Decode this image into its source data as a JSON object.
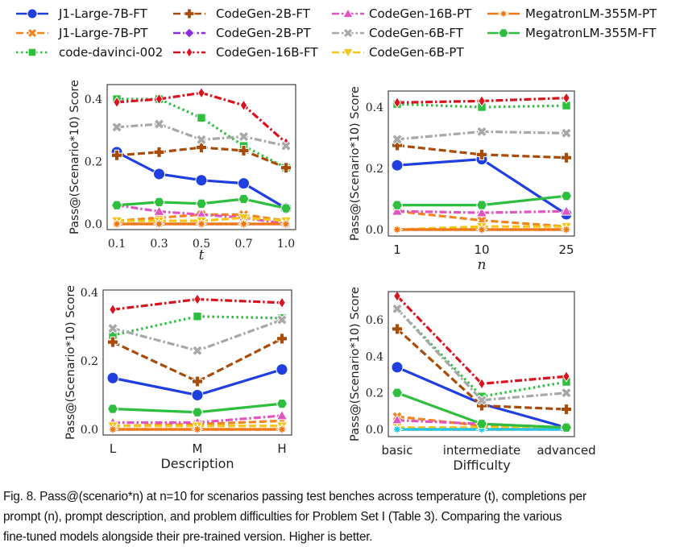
{
  "legend": [
    {
      "name": "J1-Large-7B-FT",
      "color": "#1f3fe0",
      "marker": "circle",
      "linestyle": "solid"
    },
    {
      "name": "J1-Large-7B-PT",
      "color": "#f5841f",
      "marker": "x",
      "linestyle": "dashed"
    },
    {
      "name": "code-davinci-002",
      "color": "#2fbf3f",
      "marker": "square",
      "linestyle": "dotted"
    },
    {
      "name": "CodeGen-2B-FT",
      "color": "#a84c0a",
      "marker": "plus",
      "linestyle": "dashed"
    },
    {
      "name": "CodeGen-2B-PT",
      "color": "#8a2be2",
      "marker": "diamond",
      "linestyle": "dashdot"
    },
    {
      "name": "CodeGen-16B-FT",
      "color": "#d8121e",
      "marker": "thin-diamond",
      "linestyle": "dashdot"
    },
    {
      "name": "CodeGen-16B-PT",
      "color": "#e055c0",
      "marker": "triangle-up",
      "linestyle": "dashdot"
    },
    {
      "name": "CodeGen-6B-FT",
      "color": "#a8a8a8",
      "marker": "x-filled",
      "linestyle": "dashdot"
    },
    {
      "name": "CodeGen-6B-PT",
      "color": "#f5c518",
      "marker": "triangle-down",
      "linestyle": "dashed"
    },
    {
      "name": "MegatronLM-355M-PT",
      "color": "#f07810",
      "marker": "star",
      "linestyle": "solid"
    },
    {
      "name": "MegatronLM-355M-FT",
      "color": "#2fbf3f",
      "marker": "hexagon",
      "linestyle": "solid"
    }
  ],
  "extra_series_color": "#1fc8e8",
  "chart_data": [
    {
      "type": "line",
      "xlabel": "t",
      "ylabel": "Pass@(Scenario*10) Score",
      "categories": [
        "0.1",
        "0.3",
        "0.5",
        "0.7",
        "1.0"
      ],
      "ylim": [
        0,
        0.44
      ],
      "yticks": [
        "0.0",
        "0.2",
        "0.4"
      ],
      "grid": false,
      "series": [
        {
          "name": "J1-Large-7B-FT",
          "values": [
            0.23,
            0.16,
            0.14,
            0.13,
            0.05
          ]
        },
        {
          "name": "J1-Large-7B-PT",
          "values": [
            0.01,
            0.02,
            0.03,
            0.03,
            0.01
          ]
        },
        {
          "name": "code-davinci-002",
          "values": [
            0.4,
            0.4,
            0.34,
            0.25,
            0.18
          ]
        },
        {
          "name": "CodeGen-2B-FT",
          "values": [
            0.22,
            0.23,
            0.245,
            0.235,
            0.18
          ]
        },
        {
          "name": "CodeGen-2B-PT",
          "values": [
            0,
            0,
            0,
            0,
            0
          ]
        },
        {
          "name": "CodeGen-16B-FT",
          "values": [
            0.39,
            0.4,
            0.42,
            0.38,
            0.26
          ]
        },
        {
          "name": "CodeGen-16B-PT",
          "values": [
            0.06,
            0.04,
            0.03,
            0.02,
            0.0
          ]
        },
        {
          "name": "CodeGen-6B-FT",
          "values": [
            0.31,
            0.32,
            0.27,
            0.28,
            0.25
          ]
        },
        {
          "name": "CodeGen-6B-PT",
          "values": [
            0.01,
            0.01,
            0.01,
            0.02,
            0.01
          ]
        },
        {
          "name": "MegatronLM-355M-PT",
          "values": [
            0,
            0,
            0,
            0,
            0
          ]
        },
        {
          "name": "MegatronLM-355M-FT",
          "values": [
            0.06,
            0.07,
            0.065,
            0.08,
            0.05
          ]
        }
      ]
    },
    {
      "type": "line",
      "xlabel": "n",
      "ylabel": "Pass@(Scenario*10) Score",
      "categories": [
        "1",
        "10",
        "25"
      ],
      "ylim": [
        0,
        0.44
      ],
      "yticks": [
        "0.0",
        "0.2",
        "0.4"
      ],
      "grid": false,
      "series": [
        {
          "name": "J1-Large-7B-FT",
          "values": [
            0.21,
            0.23,
            0.05
          ]
        },
        {
          "name": "J1-Large-7B-PT",
          "values": [
            0.06,
            0.03,
            0.01
          ]
        },
        {
          "name": "code-davinci-002",
          "values": [
            0.41,
            0.4,
            0.405
          ]
        },
        {
          "name": "CodeGen-2B-FT",
          "values": [
            0.275,
            0.245,
            0.235
          ]
        },
        {
          "name": "CodeGen-2B-PT",
          "values": [
            0,
            0,
            0
          ]
        },
        {
          "name": "CodeGen-16B-FT",
          "values": [
            0.415,
            0.42,
            0.43
          ]
        },
        {
          "name": "CodeGen-16B-PT",
          "values": [
            0.06,
            0.055,
            0.06
          ]
        },
        {
          "name": "CodeGen-6B-FT",
          "values": [
            0.295,
            0.32,
            0.315
          ]
        },
        {
          "name": "CodeGen-6B-PT",
          "values": [
            0.0,
            0.01,
            0.01
          ]
        },
        {
          "name": "MegatronLM-355M-PT",
          "values": [
            0,
            0,
            0
          ]
        },
        {
          "name": "MegatronLM-355M-FT",
          "values": [
            0.08,
            0.08,
            0.11
          ]
        }
      ]
    },
    {
      "type": "line",
      "xlabel": "Description",
      "ylabel": "Pass@(Scenario*10) Score",
      "categories": [
        "L",
        "M",
        "H"
      ],
      "ylim": [
        0,
        0.41
      ],
      "yticks": [
        "0.0",
        "0.2",
        "0.4"
      ],
      "grid": false,
      "series": [
        {
          "name": "J1-Large-7B-FT",
          "values": [
            0.15,
            0.1,
            0.175
          ]
        },
        {
          "name": "J1-Large-7B-PT",
          "values": [
            0.01,
            0.015,
            0.025
          ]
        },
        {
          "name": "code-davinci-002",
          "values": [
            0.275,
            0.33,
            0.325
          ]
        },
        {
          "name": "CodeGen-2B-FT",
          "values": [
            0.255,
            0.14,
            0.265
          ]
        },
        {
          "name": "CodeGen-2B-PT",
          "values": [
            0,
            0,
            0
          ]
        },
        {
          "name": "CodeGen-16B-FT",
          "values": [
            0.35,
            0.38,
            0.37
          ]
        },
        {
          "name": "CodeGen-16B-PT",
          "values": [
            0.02,
            0.02,
            0.04
          ]
        },
        {
          "name": "CodeGen-6B-FT",
          "values": [
            0.295,
            0.23,
            0.32
          ]
        },
        {
          "name": "CodeGen-6B-PT",
          "values": [
            0.01,
            0.01,
            0.01
          ]
        },
        {
          "name": "MegatronLM-355M-PT",
          "values": [
            0,
            0,
            0
          ]
        },
        {
          "name": "MegatronLM-355M-FT",
          "values": [
            0.06,
            0.05,
            0.075
          ]
        }
      ]
    },
    {
      "type": "line",
      "xlabel": "Difficulty",
      "ylabel": "Pass@(Scenario*10) Score",
      "categories": [
        "basic",
        "intermediate",
        "advanced"
      ],
      "ylim": [
        0,
        0.77
      ],
      "yticks": [
        "0.0",
        "0.2",
        "0.4",
        "0.6"
      ],
      "grid": false,
      "series": [
        {
          "name": "J1-Large-7B-FT",
          "values": [
            0.34,
            0.14,
            0.01
          ]
        },
        {
          "name": "J1-Large-7B-PT",
          "values": [
            0.07,
            0.02,
            0.0
          ]
        },
        {
          "name": "code-davinci-002",
          "values": [
            0.66,
            0.18,
            0.26
          ]
        },
        {
          "name": "CodeGen-2B-FT",
          "values": [
            0.55,
            0.13,
            0.11
          ]
        },
        {
          "name": "CodeGen-2B-PT",
          "values": [
            0,
            0,
            0
          ]
        },
        {
          "name": "CodeGen-16B-FT",
          "values": [
            0.73,
            0.25,
            0.29
          ]
        },
        {
          "name": "CodeGen-16B-PT",
          "values": [
            0.05,
            0.03,
            0.01
          ]
        },
        {
          "name": "CodeGen-6B-FT",
          "values": [
            0.66,
            0.16,
            0.2
          ]
        },
        {
          "name": "CodeGen-6B-PT",
          "values": [
            0.01,
            0.01,
            0.01
          ]
        },
        {
          "name": "MegatronLM-355M-PT",
          "values": [
            0,
            0,
            0
          ]
        },
        {
          "name": "",
          "values": [
            0,
            0,
            0
          ]
        },
        {
          "name": "MegatronLM-355M-FT",
          "values": [
            0.2,
            0.03,
            0.01
          ]
        }
      ]
    }
  ],
  "caption": {
    "line1": "Fig. 8.  Pass@(scenario*n) at n=10 for scenarios passing test benches across temperature (t), completions per",
    "line2": "prompt (n), prompt description, and problem difficulties for Problem Set I (Table 3). Comparing the various",
    "line3": "fine-tuned models alongside their pre-trained version. Higher is better."
  }
}
